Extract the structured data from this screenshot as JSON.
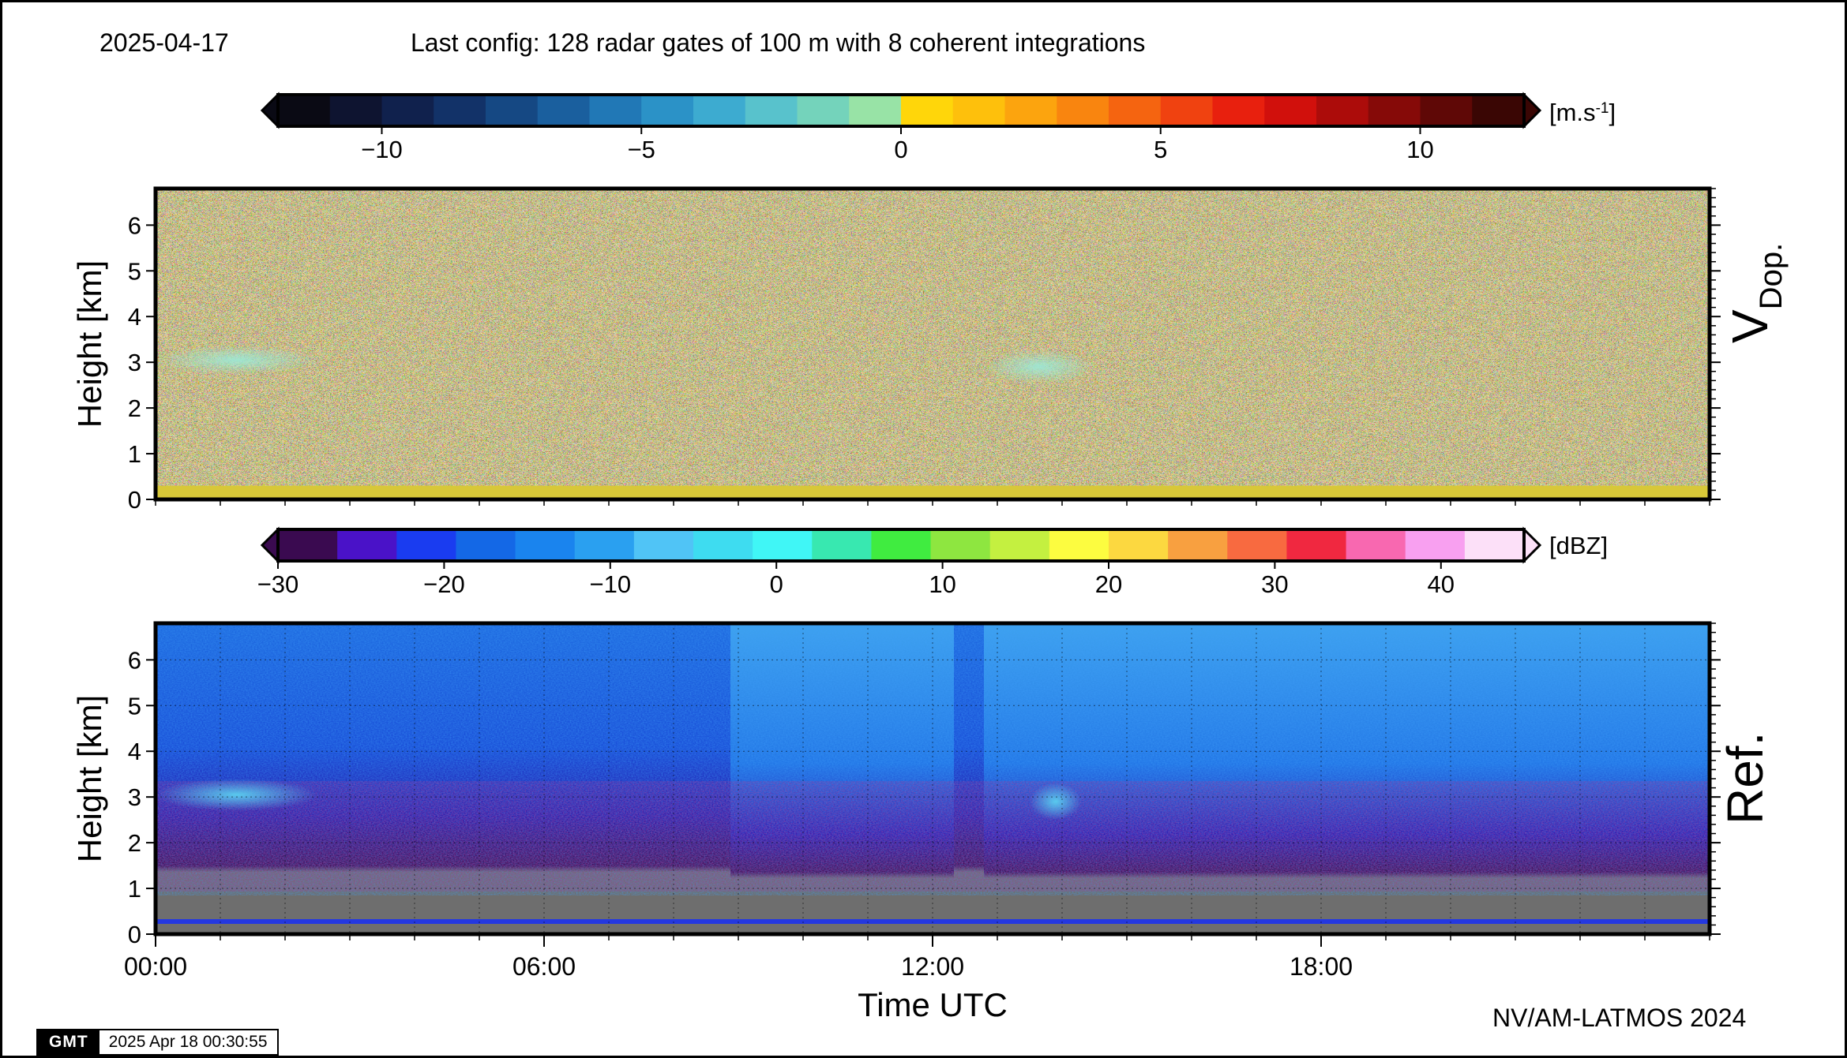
{
  "header": {
    "date": "2025-04-17",
    "config": "Last config: 128 radar gates of 100 m with 8 coherent integrations"
  },
  "footer": {
    "credit": "NV/AM-LATMOS 2024",
    "logo": "GMT",
    "timestamp": "2025 Apr 18 00:30:55"
  },
  "chart_data": [
    {
      "type": "heatmap",
      "title": "V Dop.",
      "ylabel": "Height [km]",
      "ylim": [
        0,
        6.8
      ],
      "yticks": [
        0,
        1,
        2,
        3,
        4,
        5,
        6
      ],
      "xlim_hours": [
        0,
        24
      ],
      "grid": false,
      "colorbar": {
        "unit": "[m.s-1]",
        "range": [
          -12,
          12
        ],
        "ticks": [
          "−10",
          "−5",
          "0",
          "5",
          "10"
        ],
        "tick_values": [
          -10,
          -5,
          0,
          5,
          10
        ],
        "colors": [
          "#0a0a14",
          "#0e1430",
          "#10214d",
          "#123268",
          "#154883",
          "#1a5f9e",
          "#2178b6",
          "#2b92c7",
          "#3dabd0",
          "#58c2cc",
          "#74d3bb",
          "#98e3a6",
          "#ffd60a",
          "#fec00c",
          "#fca40e",
          "#f9850f",
          "#f56410",
          "#f04210",
          "#e8200e",
          "#d1100c",
          "#ac0c0a",
          "#860a08",
          "#5f0806",
          "#3a0604"
        ]
      },
      "features": [
        {
          "name": "cloud-layer",
          "time_h": [
            0.0,
            2.5
          ],
          "height_km": [
            2.8,
            3.3
          ],
          "value_ms": -1.0
        },
        {
          "name": "cloud-layer",
          "time_h": [
            12.8,
            14.5
          ],
          "height_km": [
            2.6,
            3.2
          ],
          "value_ms": -1.0
        },
        {
          "name": "ground-clutter",
          "time_h": [
            0,
            24
          ],
          "height_km": [
            0,
            0.3
          ],
          "value_ms": 0.5
        }
      ]
    },
    {
      "type": "heatmap",
      "title": "Ref.",
      "ylabel": "Height [km]",
      "xlabel": "Time UTC",
      "ylim": [
        0,
        6.8
      ],
      "yticks": [
        0,
        1,
        2,
        3,
        4,
        5,
        6
      ],
      "xlim_hours": [
        0,
        24
      ],
      "xticks": [
        "00:00",
        "06:00",
        "12:00",
        "18:00"
      ],
      "xtick_hours": [
        0,
        6,
        12,
        18
      ],
      "grid": true,
      "colorbar": {
        "unit": "[dBZ]",
        "range": [
          -30,
          45
        ],
        "ticks": [
          "−30",
          "−20",
          "−10",
          "0",
          "10",
          "20",
          "30",
          "40"
        ],
        "tick_values": [
          -30,
          -20,
          -10,
          0,
          10,
          20,
          30,
          40
        ],
        "colors": [
          "#3a0a50",
          "#4a12c8",
          "#1a3cf0",
          "#1468e6",
          "#1a84ee",
          "#2aa0f0",
          "#50c4f6",
          "#3edcf0",
          "#40f6f6",
          "#38e8b0",
          "#40ec40",
          "#8ee640",
          "#c4f040",
          "#fcfc40",
          "#fcd840",
          "#f8a040",
          "#f86a40",
          "#f02840",
          "#f868b0",
          "#f8a0f0",
          "#fce0f8"
        ]
      },
      "features": [
        {
          "name": "no-signal-band",
          "time_h": [
            0,
            24
          ],
          "height_km": [
            0.3,
            1.0
          ],
          "value_dbz": "gray"
        },
        {
          "name": "cloud-layer",
          "time_h": [
            0.0,
            2.5
          ],
          "height_km": [
            2.8,
            3.3
          ],
          "value_dbz": -8
        },
        {
          "name": "cloud-layer",
          "time_h": [
            13.5,
            14.3
          ],
          "height_km": [
            2.6,
            3.2
          ],
          "value_dbz": -8
        },
        {
          "name": "high-noise-period",
          "time_h": [
            8.9,
            12.3
          ],
          "height_km": [
            1.0,
            6.8
          ],
          "value_dbz": -14
        },
        {
          "name": "high-noise-period",
          "time_h": [
            12.8,
            24
          ],
          "height_km": [
            1.0,
            6.8
          ],
          "value_dbz": -14
        }
      ]
    }
  ]
}
